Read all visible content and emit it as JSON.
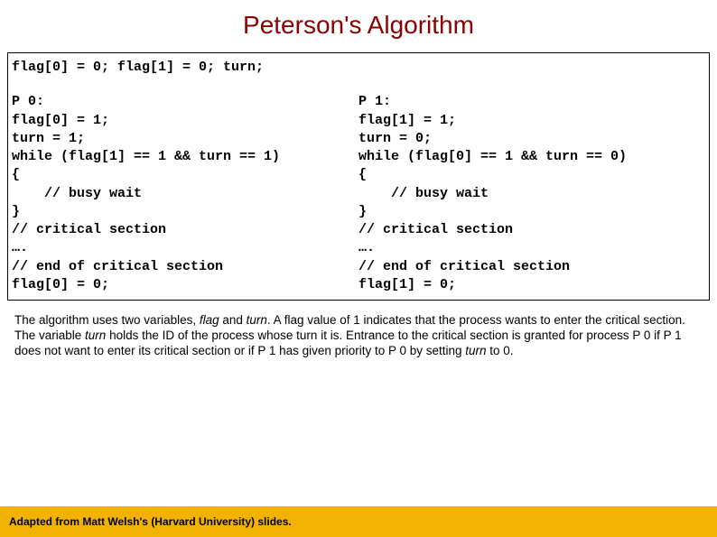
{
  "title": "Peterson's Algorithm",
  "code": {
    "init": "flag[0] = 0; flag[1] = 0; turn;",
    "p0": "P 0:\nflag[0] = 1;\nturn = 1;\nwhile (flag[1] == 1 && turn == 1)\n{\n    // busy wait\n}\n// critical section\n….\n// end of critical section\nflag[0] = 0;",
    "p1": "P 1:\nflag[1] = 1;\nturn = 0;\nwhile (flag[0] == 1 && turn == 0)\n{\n    // busy wait\n}\n// critical section\n….\n// end of critical section\nflag[1] = 0;"
  },
  "explain_parts": {
    "t1": "The algorithm uses two variables, ",
    "i1": "flag",
    "t2": " and ",
    "i2": "turn",
    "t3": ". A flag value of 1 indicates that the process wants to enter the critical section. The variable ",
    "i3": "turn",
    "t4": " holds the ID of the process whose turn it is. Entrance to the critical section is granted for process P 0 if P 1 does not want to enter its critical section or if P 1 has given priority to P 0 by setting ",
    "i4": "turn",
    "t5": " to 0."
  },
  "footer": "Adapted from Matt Welsh's (Harvard University) slides.",
  "colors": {
    "title": "#8b0000",
    "footer_bg": "#f1b300",
    "background": "#ffffff",
    "border": "#000000",
    "text": "#000000"
  },
  "fonts": {
    "title_size": 28,
    "code_size": 15,
    "explain_size": 13.5,
    "footer_size": 12,
    "code_family": "Courier New",
    "body_family": "Arial"
  }
}
